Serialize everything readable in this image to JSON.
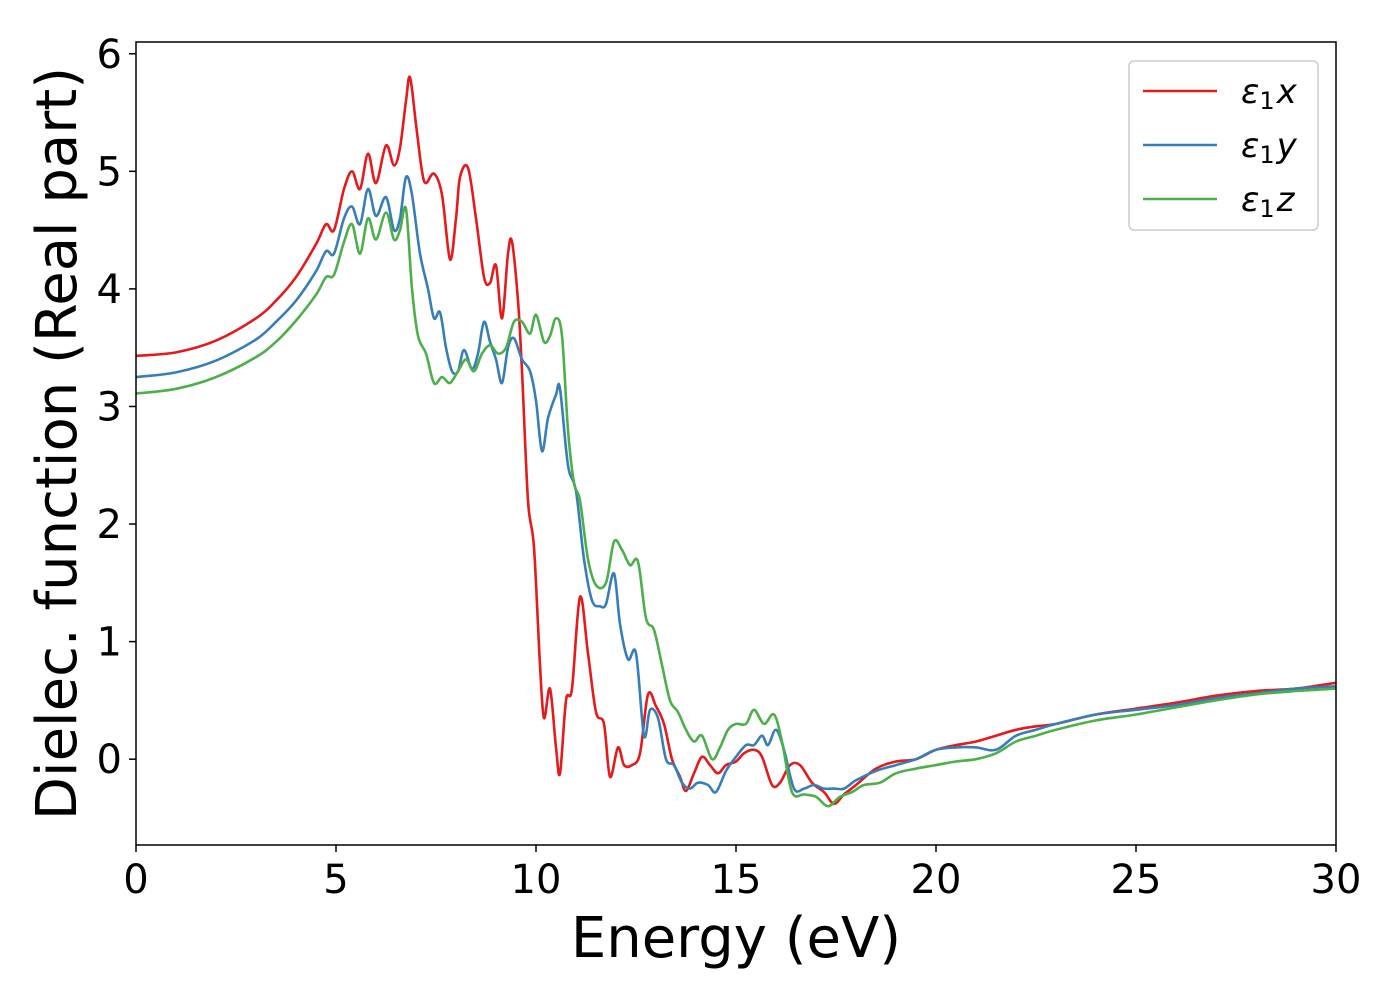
{
  "chart_data": {
    "type": "line",
    "title": "",
    "xlabel": "Energy (eV)",
    "ylabel": "Dielec. function (Real part)",
    "xlim": [
      0,
      30
    ],
    "ylim": [
      -0.73,
      6.1
    ],
    "xticks": [
      0,
      5,
      10,
      15,
      20,
      25,
      30
    ],
    "yticks": [
      0,
      1,
      2,
      3,
      4,
      5,
      6
    ],
    "xtick_labels": [
      "0",
      "5",
      "10",
      "15",
      "20",
      "25",
      "30"
    ],
    "ytick_labels": [
      "0",
      "1",
      "2",
      "3",
      "4",
      "5",
      "6"
    ],
    "grid": false,
    "legend_position": "top-right",
    "series": [
      {
        "name": "ε₁x",
        "legend_symbol": "ε",
        "legend_subscript": "1",
        "legend_var": "x",
        "color": "#e41a1c",
        "points": [
          [
            0,
            3.43
          ],
          [
            1,
            3.46
          ],
          [
            2,
            3.56
          ],
          [
            3,
            3.75
          ],
          [
            3.5,
            3.9
          ],
          [
            4,
            4.1
          ],
          [
            4.5,
            4.38
          ],
          [
            4.75,
            4.55
          ],
          [
            4.95,
            4.5
          ],
          [
            5.2,
            4.85
          ],
          [
            5.4,
            5.0
          ],
          [
            5.6,
            4.85
          ],
          [
            5.8,
            5.15
          ],
          [
            6.0,
            4.9
          ],
          [
            6.25,
            5.22
          ],
          [
            6.45,
            5.05
          ],
          [
            6.6,
            5.2
          ],
          [
            6.75,
            5.6
          ],
          [
            6.85,
            5.8
          ],
          [
            7.0,
            5.4
          ],
          [
            7.15,
            5.0
          ],
          [
            7.25,
            4.9
          ],
          [
            7.45,
            4.98
          ],
          [
            7.65,
            4.8
          ],
          [
            7.85,
            4.25
          ],
          [
            8.0,
            4.6
          ],
          [
            8.1,
            4.95
          ],
          [
            8.3,
            5.03
          ],
          [
            8.5,
            4.6
          ],
          [
            8.7,
            4.1
          ],
          [
            8.85,
            4.05
          ],
          [
            9.0,
            4.2
          ],
          [
            9.15,
            3.75
          ],
          [
            9.3,
            4.3
          ],
          [
            9.4,
            4.4
          ],
          [
            9.55,
            3.9
          ],
          [
            9.65,
            3.3
          ],
          [
            9.8,
            2.2
          ],
          [
            9.95,
            1.8
          ],
          [
            10.1,
            0.8
          ],
          [
            10.2,
            0.35
          ],
          [
            10.35,
            0.6
          ],
          [
            10.5,
            0.1
          ],
          [
            10.6,
            -0.12
          ],
          [
            10.75,
            0.5
          ],
          [
            10.9,
            0.6
          ],
          [
            11.1,
            1.38
          ],
          [
            11.3,
            0.9
          ],
          [
            11.5,
            0.4
          ],
          [
            11.7,
            0.3
          ],
          [
            11.85,
            -0.15
          ],
          [
            12.05,
            0.1
          ],
          [
            12.2,
            -0.05
          ],
          [
            12.4,
            -0.05
          ],
          [
            12.6,
            0.05
          ],
          [
            12.8,
            0.55
          ],
          [
            13.0,
            0.45
          ],
          [
            13.2,
            0.3
          ],
          [
            13.4,
            0.0
          ],
          [
            13.6,
            -0.15
          ],
          [
            13.75,
            -0.27
          ],
          [
            13.95,
            -0.12
          ],
          [
            14.15,
            0.02
          ],
          [
            14.35,
            -0.05
          ],
          [
            14.55,
            -0.12
          ],
          [
            14.75,
            -0.05
          ],
          [
            15.0,
            -0.02
          ],
          [
            15.2,
            0.05
          ],
          [
            15.45,
            0.08
          ],
          [
            15.65,
            0.02
          ],
          [
            15.9,
            -0.22
          ],
          [
            16.1,
            -0.2
          ],
          [
            16.35,
            -0.05
          ],
          [
            16.6,
            -0.05
          ],
          [
            16.9,
            -0.2
          ],
          [
            17.2,
            -0.28
          ],
          [
            17.45,
            -0.38
          ],
          [
            17.7,
            -0.3
          ],
          [
            18.0,
            -0.22
          ],
          [
            18.5,
            -0.08
          ],
          [
            19.0,
            -0.02
          ],
          [
            19.5,
            0.0
          ],
          [
            20.0,
            0.08
          ],
          [
            20.5,
            0.12
          ],
          [
            21.0,
            0.15
          ],
          [
            21.5,
            0.2
          ],
          [
            22.0,
            0.25
          ],
          [
            22.5,
            0.28
          ],
          [
            23.0,
            0.3
          ],
          [
            24.0,
            0.38
          ],
          [
            25.0,
            0.43
          ],
          [
            26.0,
            0.48
          ],
          [
            27.0,
            0.54
          ],
          [
            28.0,
            0.58
          ],
          [
            29.0,
            0.6
          ],
          [
            30.0,
            0.65
          ]
        ]
      },
      {
        "name": "ε₁y",
        "legend_symbol": "ε",
        "legend_subscript": "1",
        "legend_var": "y",
        "color": "#377eb8",
        "points": [
          [
            0,
            3.25
          ],
          [
            1,
            3.29
          ],
          [
            2,
            3.39
          ],
          [
            3,
            3.57
          ],
          [
            3.5,
            3.72
          ],
          [
            4,
            3.9
          ],
          [
            4.5,
            4.15
          ],
          [
            4.75,
            4.32
          ],
          [
            4.95,
            4.3
          ],
          [
            5.2,
            4.6
          ],
          [
            5.4,
            4.7
          ],
          [
            5.6,
            4.55
          ],
          [
            5.8,
            4.85
          ],
          [
            6.0,
            4.62
          ],
          [
            6.25,
            4.78
          ],
          [
            6.45,
            4.5
          ],
          [
            6.6,
            4.6
          ],
          [
            6.75,
            4.95
          ],
          [
            6.9,
            4.8
          ],
          [
            7.1,
            4.3
          ],
          [
            7.3,
            4.0
          ],
          [
            7.45,
            3.75
          ],
          [
            7.6,
            3.8
          ],
          [
            7.75,
            3.5
          ],
          [
            7.9,
            3.3
          ],
          [
            8.05,
            3.3
          ],
          [
            8.2,
            3.48
          ],
          [
            8.4,
            3.32
          ],
          [
            8.55,
            3.45
          ],
          [
            8.7,
            3.72
          ],
          [
            8.85,
            3.55
          ],
          [
            9.0,
            3.4
          ],
          [
            9.15,
            3.2
          ],
          [
            9.3,
            3.5
          ],
          [
            9.45,
            3.58
          ],
          [
            9.65,
            3.4
          ],
          [
            9.85,
            3.3
          ],
          [
            10.0,
            3.05
          ],
          [
            10.15,
            2.62
          ],
          [
            10.3,
            2.9
          ],
          [
            10.5,
            3.1
          ],
          [
            10.6,
            3.15
          ],
          [
            10.8,
            2.5
          ],
          [
            11.0,
            2.28
          ],
          [
            11.2,
            1.7
          ],
          [
            11.4,
            1.35
          ],
          [
            11.6,
            1.3
          ],
          [
            11.75,
            1.32
          ],
          [
            11.95,
            1.58
          ],
          [
            12.1,
            1.15
          ],
          [
            12.3,
            0.85
          ],
          [
            12.5,
            0.9
          ],
          [
            12.7,
            0.2
          ],
          [
            12.85,
            0.42
          ],
          [
            13.05,
            0.35
          ],
          [
            13.25,
            0.0
          ],
          [
            13.45,
            -0.05
          ],
          [
            13.65,
            -0.2
          ],
          [
            13.85,
            -0.25
          ],
          [
            14.05,
            -0.2
          ],
          [
            14.3,
            -0.22
          ],
          [
            14.5,
            -0.28
          ],
          [
            14.75,
            -0.1
          ],
          [
            15.0,
            0.02
          ],
          [
            15.25,
            0.12
          ],
          [
            15.45,
            0.12
          ],
          [
            15.65,
            0.2
          ],
          [
            15.8,
            0.12
          ],
          [
            16.0,
            0.25
          ],
          [
            16.2,
            0.08
          ],
          [
            16.45,
            -0.25
          ],
          [
            16.7,
            -0.25
          ],
          [
            16.95,
            -0.22
          ],
          [
            17.2,
            -0.25
          ],
          [
            17.45,
            -0.25
          ],
          [
            17.7,
            -0.25
          ],
          [
            18.0,
            -0.18
          ],
          [
            18.5,
            -0.1
          ],
          [
            19.0,
            -0.05
          ],
          [
            19.5,
            0.0
          ],
          [
            20.0,
            0.08
          ],
          [
            20.5,
            0.1
          ],
          [
            21.0,
            0.1
          ],
          [
            21.5,
            0.08
          ],
          [
            22.0,
            0.2
          ],
          [
            22.5,
            0.25
          ],
          [
            23.0,
            0.3
          ],
          [
            24.0,
            0.38
          ],
          [
            25.0,
            0.42
          ],
          [
            26.0,
            0.46
          ],
          [
            27.0,
            0.52
          ],
          [
            28.0,
            0.56
          ],
          [
            29.0,
            0.6
          ],
          [
            30.0,
            0.62
          ]
        ]
      },
      {
        "name": "ε₁z",
        "legend_symbol": "ε",
        "legend_subscript": "1",
        "legend_var": "z",
        "color": "#4daf4a",
        "points": [
          [
            0,
            3.11
          ],
          [
            1,
            3.15
          ],
          [
            2,
            3.25
          ],
          [
            3,
            3.42
          ],
          [
            3.5,
            3.55
          ],
          [
            4,
            3.73
          ],
          [
            4.5,
            3.95
          ],
          [
            4.75,
            4.1
          ],
          [
            4.95,
            4.12
          ],
          [
            5.2,
            4.4
          ],
          [
            5.4,
            4.55
          ],
          [
            5.6,
            4.3
          ],
          [
            5.8,
            4.6
          ],
          [
            6.0,
            4.42
          ],
          [
            6.25,
            4.65
          ],
          [
            6.45,
            4.42
          ],
          [
            6.6,
            4.5
          ],
          [
            6.75,
            4.68
          ],
          [
            6.9,
            4.0
          ],
          [
            7.05,
            3.6
          ],
          [
            7.25,
            3.45
          ],
          [
            7.45,
            3.2
          ],
          [
            7.65,
            3.25
          ],
          [
            7.85,
            3.2
          ],
          [
            8.05,
            3.3
          ],
          [
            8.25,
            3.4
          ],
          [
            8.45,
            3.3
          ],
          [
            8.65,
            3.45
          ],
          [
            8.85,
            3.52
          ],
          [
            9.05,
            3.45
          ],
          [
            9.25,
            3.5
          ],
          [
            9.45,
            3.72
          ],
          [
            9.65,
            3.72
          ],
          [
            9.85,
            3.62
          ],
          [
            10.0,
            3.78
          ],
          [
            10.2,
            3.55
          ],
          [
            10.35,
            3.6
          ],
          [
            10.5,
            3.75
          ],
          [
            10.65,
            3.6
          ],
          [
            10.8,
            2.8
          ],
          [
            10.95,
            2.35
          ],
          [
            11.1,
            2.2
          ],
          [
            11.3,
            1.7
          ],
          [
            11.5,
            1.48
          ],
          [
            11.75,
            1.5
          ],
          [
            11.95,
            1.85
          ],
          [
            12.15,
            1.78
          ],
          [
            12.35,
            1.65
          ],
          [
            12.55,
            1.68
          ],
          [
            12.75,
            1.2
          ],
          [
            12.95,
            1.1
          ],
          [
            13.15,
            0.8
          ],
          [
            13.35,
            0.5
          ],
          [
            13.55,
            0.4
          ],
          [
            13.75,
            0.25
          ],
          [
            13.95,
            0.15
          ],
          [
            14.15,
            0.2
          ],
          [
            14.4,
            0.0
          ],
          [
            14.6,
            0.1
          ],
          [
            14.8,
            0.25
          ],
          [
            15.0,
            0.3
          ],
          [
            15.25,
            0.3
          ],
          [
            15.45,
            0.42
          ],
          [
            15.7,
            0.3
          ],
          [
            15.95,
            0.38
          ],
          [
            16.15,
            0.15
          ],
          [
            16.4,
            -0.28
          ],
          [
            16.7,
            -0.3
          ],
          [
            17.0,
            -0.32
          ],
          [
            17.3,
            -0.4
          ],
          [
            17.6,
            -0.32
          ],
          [
            17.9,
            -0.28
          ],
          [
            18.2,
            -0.22
          ],
          [
            18.6,
            -0.2
          ],
          [
            19.0,
            -0.12
          ],
          [
            19.5,
            -0.08
          ],
          [
            20.0,
            -0.05
          ],
          [
            20.5,
            -0.02
          ],
          [
            21.0,
            0.0
          ],
          [
            21.5,
            0.05
          ],
          [
            22.0,
            0.15
          ],
          [
            22.5,
            0.2
          ],
          [
            23.0,
            0.25
          ],
          [
            24.0,
            0.33
          ],
          [
            25.0,
            0.38
          ],
          [
            26.0,
            0.44
          ],
          [
            27.0,
            0.5
          ],
          [
            28.0,
            0.55
          ],
          [
            29.0,
            0.58
          ],
          [
            30.0,
            0.6
          ]
        ]
      }
    ]
  }
}
